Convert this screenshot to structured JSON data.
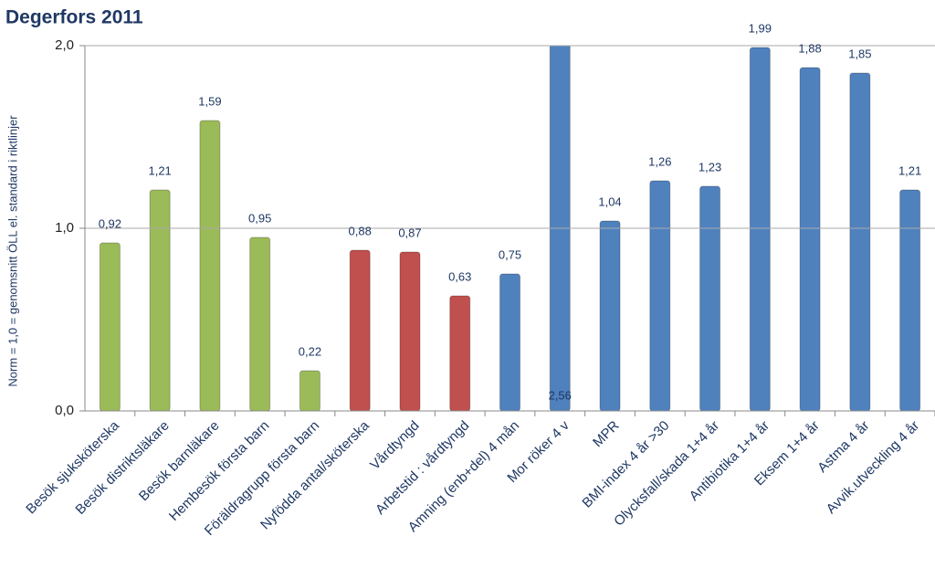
{
  "chart_data": {
    "type": "bar",
    "title": "Degerfors 2011",
    "y_label": "Norm = 1,0 = genomsnitt ÖLL el. standard i riktlinjer",
    "categories": [
      "Besök sjuksköterska",
      "Besök distriktsläkare",
      "Besök barnläkare",
      "Hembesök första barn",
      "Föräldragrupp första barn",
      "Nyfödda antal/sköterska",
      "Vårdtyngd",
      "Arbetstid : vårdtyngd",
      "Amning (enb+del) 4 mån",
      "Mor röker 4 v",
      "MPR",
      "BMI-index 4 år >30",
      "Olycksfall/skada 1+4 år",
      "Antibiotika 1+4 år",
      "Eksem 1+4 år",
      "Astma 4 år",
      "Avvik.utveckling 4 år"
    ],
    "values": [
      0.92,
      1.21,
      1.59,
      0.95,
      0.22,
      0.88,
      0.87,
      0.63,
      0.75,
      2.56,
      1.04,
      1.26,
      1.23,
      1.99,
      1.88,
      1.85,
      1.21
    ],
    "value_labels": [
      "0,92",
      "1,21",
      "1,59",
      "0,95",
      "0,22",
      "0,88",
      "0,87",
      "0,63",
      "0,75",
      "2,56",
      "1,04",
      "1,26",
      "1,23",
      "1,99",
      "1,88",
      "1,85",
      "1,21"
    ],
    "colors": [
      "#9bbb59",
      "#9bbb59",
      "#9bbb59",
      "#9bbb59",
      "#9bbb59",
      "#c0504d",
      "#c0504d",
      "#c0504d",
      "#4f81bd",
      "#4f81bd",
      "#4f81bd",
      "#4f81bd",
      "#4f81bd",
      "#4f81bd",
      "#4f81bd",
      "#4f81bd",
      "#4f81bd"
    ],
    "ylim": [
      0,
      2
    ],
    "yticks": [
      {
        "value": 0,
        "label": "0,0"
      },
      {
        "value": 1,
        "label": "1,0"
      },
      {
        "value": 2,
        "label": "2,0"
      }
    ],
    "grid": true
  }
}
